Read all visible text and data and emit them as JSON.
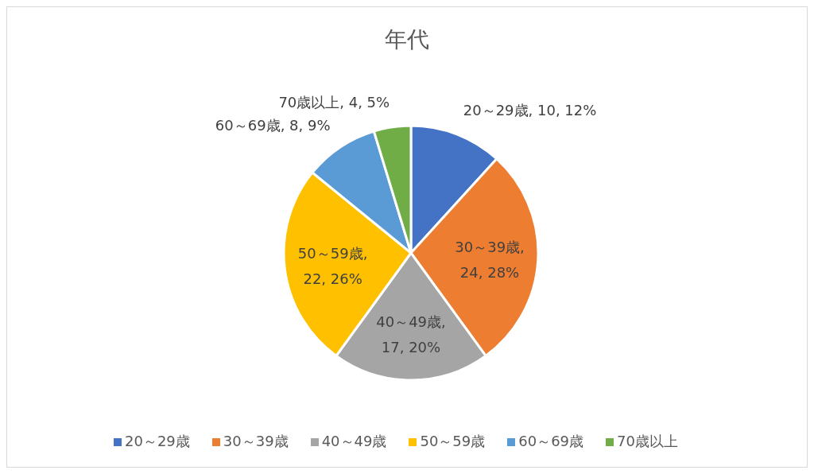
{
  "chart_data": {
    "type": "pie",
    "title": "年代",
    "categories": [
      "20～29歳",
      "30～39歳",
      "40～49歳",
      "50～59歳",
      "60～69歳",
      "70歳以上"
    ],
    "values": [
      10,
      24,
      17,
      22,
      8,
      4
    ],
    "value_labels": [
      "20～29歳, 10, 12%",
      "30～39歳, 24, 28%",
      "40～49歳, 17, 20%",
      "50～59歳, 22, 26%",
      "60～69歳, 8, 9%",
      "70歳以上, 4, 5%"
    ],
    "colors": [
      "#4472c4",
      "#ed7d31",
      "#a5a5a5",
      "#ffc000",
      "#5b9bd5",
      "#70ad47"
    ],
    "legend": "bottom"
  }
}
